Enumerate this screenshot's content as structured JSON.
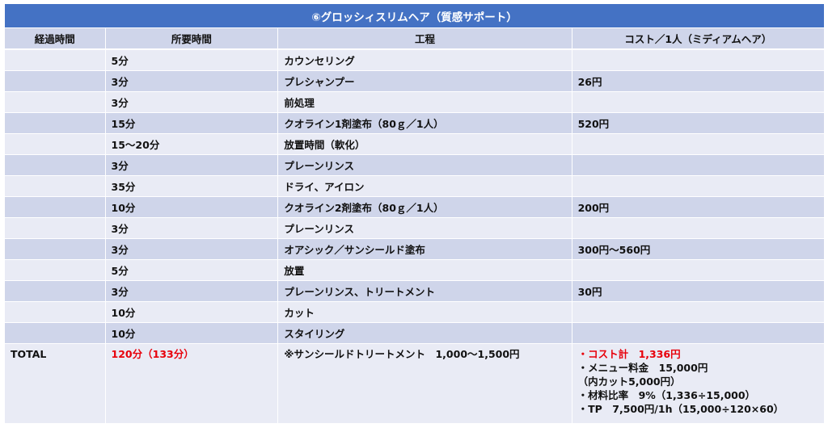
{
  "title": "⑥グロッシィスリムヘア（質感サポート）",
  "headers": [
    "経過時間",
    "所要時間",
    "工程",
    "コスト／1人（ミディアムヘア）"
  ],
  "rows": [
    {
      "elapsed": "",
      "duration": "5分",
      "process": "カウンセリング",
      "cost": ""
    },
    {
      "elapsed": "",
      "duration": "3分",
      "process": "プレシャンプー",
      "cost": "26円"
    },
    {
      "elapsed": "",
      "duration": "3分",
      "process": "前処理",
      "cost": ""
    },
    {
      "elapsed": "",
      "duration": "15分",
      "process": "クオライン1剤塗布（80ｇ／1人）",
      "cost": "520円"
    },
    {
      "elapsed": "",
      "duration": "15～20分",
      "process": "放置時間（軟化）",
      "cost": ""
    },
    {
      "elapsed": "",
      "duration": "3分",
      "process": "プレーンリンス",
      "cost": ""
    },
    {
      "elapsed": "",
      "duration": "35分",
      "process": "ドライ、アイロン",
      "cost": ""
    },
    {
      "elapsed": "",
      "duration": "10分",
      "process": "クオライン2剤塗布（80ｇ／1人）",
      "cost": "200円"
    },
    {
      "elapsed": "",
      "duration": "3分",
      "process": "プレーンリンス",
      "cost": ""
    },
    {
      "elapsed": "",
      "duration": "3分",
      "process": "オアシック／サンシールド塗布",
      "cost": "300円～560円"
    },
    {
      "elapsed": "",
      "duration": "5分",
      "process": "放置",
      "cost": ""
    },
    {
      "elapsed": "",
      "duration": "3分",
      "process": "プレーンリンス、トリートメント",
      "cost": "30円"
    },
    {
      "elapsed": "",
      "duration": "10分",
      "process": "カット",
      "cost": ""
    },
    {
      "elapsed": "",
      "duration": "10分",
      "process": "スタイリング",
      "cost": ""
    }
  ],
  "total": {
    "label": "TOTAL",
    "duration": "120分（133分）",
    "process": "※サンシールドトリートメント　1,000～1,500円",
    "cost_lines": [
      "・コスト計　1,336円",
      "・メニュー料金　15,000円",
      "（内カット5,000円）",
      "・材料比率　9%（1,336÷15,000）",
      "・TP　7,500円/1h（15,000÷120×60）"
    ]
  },
  "colors": {
    "title_bg": "#4472c4",
    "row_dark": "#cfd5ea",
    "row_light": "#e9ebf5",
    "highlight_red": "#e8000b"
  }
}
